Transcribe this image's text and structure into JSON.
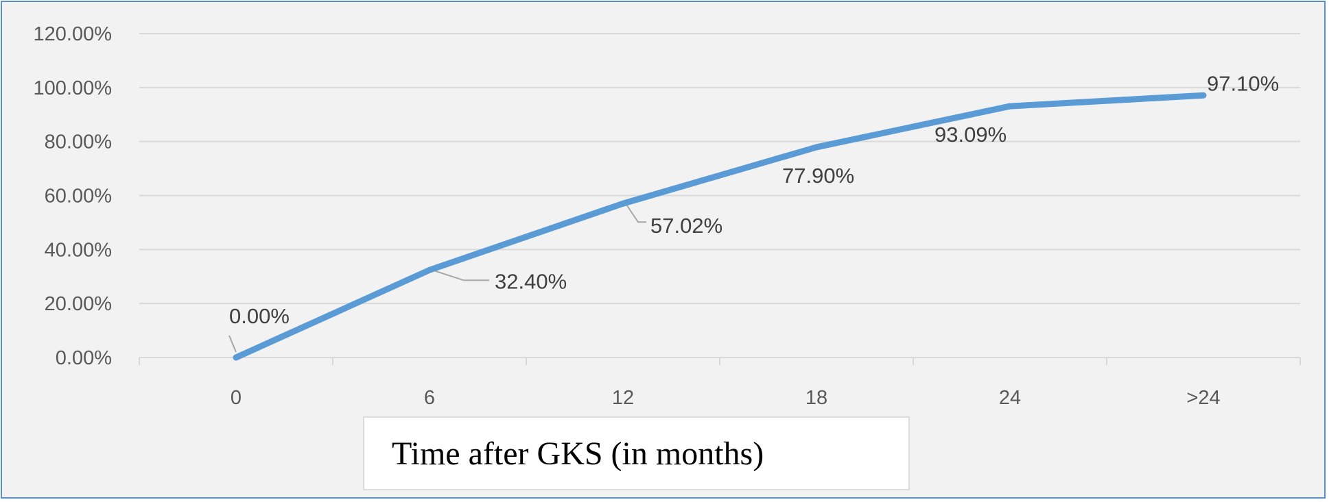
{
  "chart_data": {
    "type": "line",
    "title": "",
    "xlabel": "Time after GKS (in months)",
    "ylabel": "",
    "categories": [
      "0",
      "6",
      "12",
      "18",
      "24",
      ">24"
    ],
    "series": [
      {
        "values": [
          0.0,
          32.4,
          57.02,
          77.9,
          93.09,
          97.1
        ],
        "labels": [
          "0.00%",
          "32.40%",
          "57.02%",
          "77.90%",
          "93.09%",
          "97.10%"
        ]
      }
    ],
    "ylim": [
      0,
      120
    ],
    "yticks": [
      0,
      20,
      40,
      60,
      80,
      100,
      120
    ],
    "ytick_labels": [
      "0.00%",
      "20.00%",
      "40.00%",
      "60.00%",
      "80.00%",
      "100.00%",
      "120.00%"
    ],
    "grid": true,
    "legend": "none",
    "colors": {
      "line": "#5b9bd5",
      "grid": "#d9d9d9",
      "background": "#f2f2f2",
      "border": "#5a8fc7",
      "leader": "#a6a6a6"
    }
  }
}
